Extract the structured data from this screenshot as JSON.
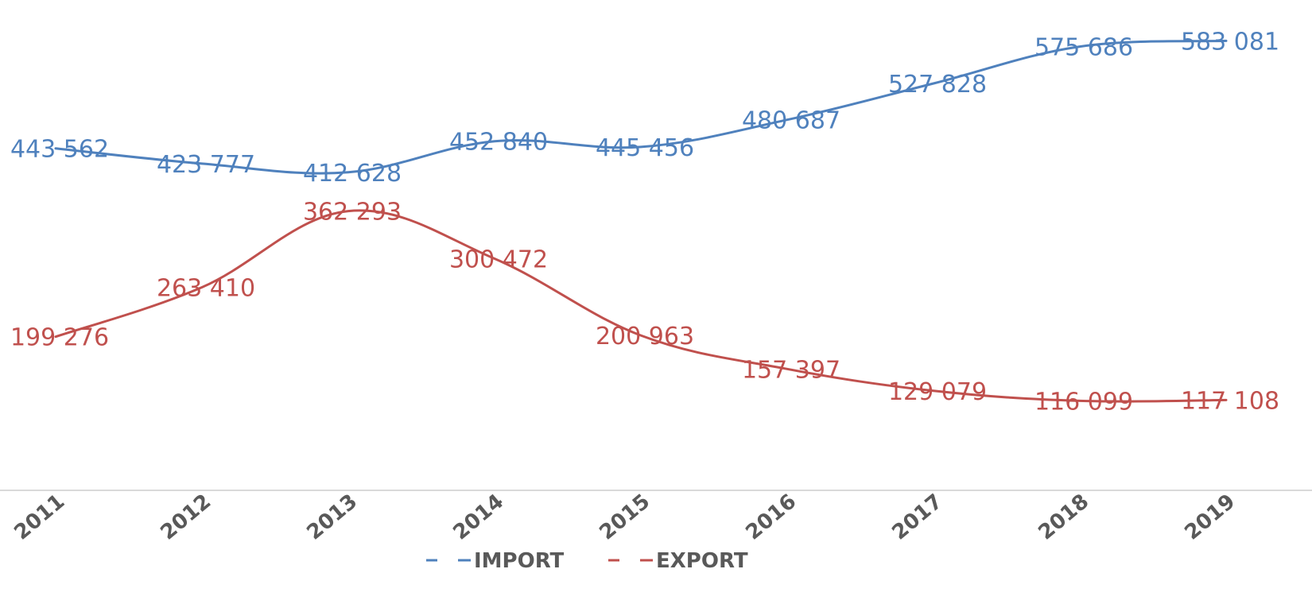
{
  "chart_data": {
    "type": "line",
    "categories": [
      "2011",
      "2012",
      "2013",
      "2014",
      "2015",
      "2016",
      "2017",
      "2018",
      "2019"
    ],
    "series": [
      {
        "name": "IMPORT",
        "color": "#4f81bd",
        "values": [
          443562,
          423777,
          412628,
          452840,
          445456,
          480687,
          527828,
          575686,
          583081
        ],
        "labels": [
          "443 562",
          "423 777",
          "412 628",
          "452 840",
          "445 456",
          "480 687",
          "527 828",
          "575 686",
          "583 081"
        ]
      },
      {
        "name": "EXPORT",
        "color": "#c0504d",
        "values": [
          199276,
          263410,
          362293,
          300472,
          200963,
          157397,
          129079,
          116099,
          117108
        ],
        "labels": [
          "199 276",
          "263 410",
          "362 293",
          "300 472",
          "200 963",
          "157 397",
          "129 079",
          "116 099",
          "117 108"
        ]
      }
    ],
    "title": "",
    "xlabel": "",
    "ylabel": "",
    "ylim": [
      0,
      600000
    ],
    "grid": false,
    "legend": "bottom"
  }
}
